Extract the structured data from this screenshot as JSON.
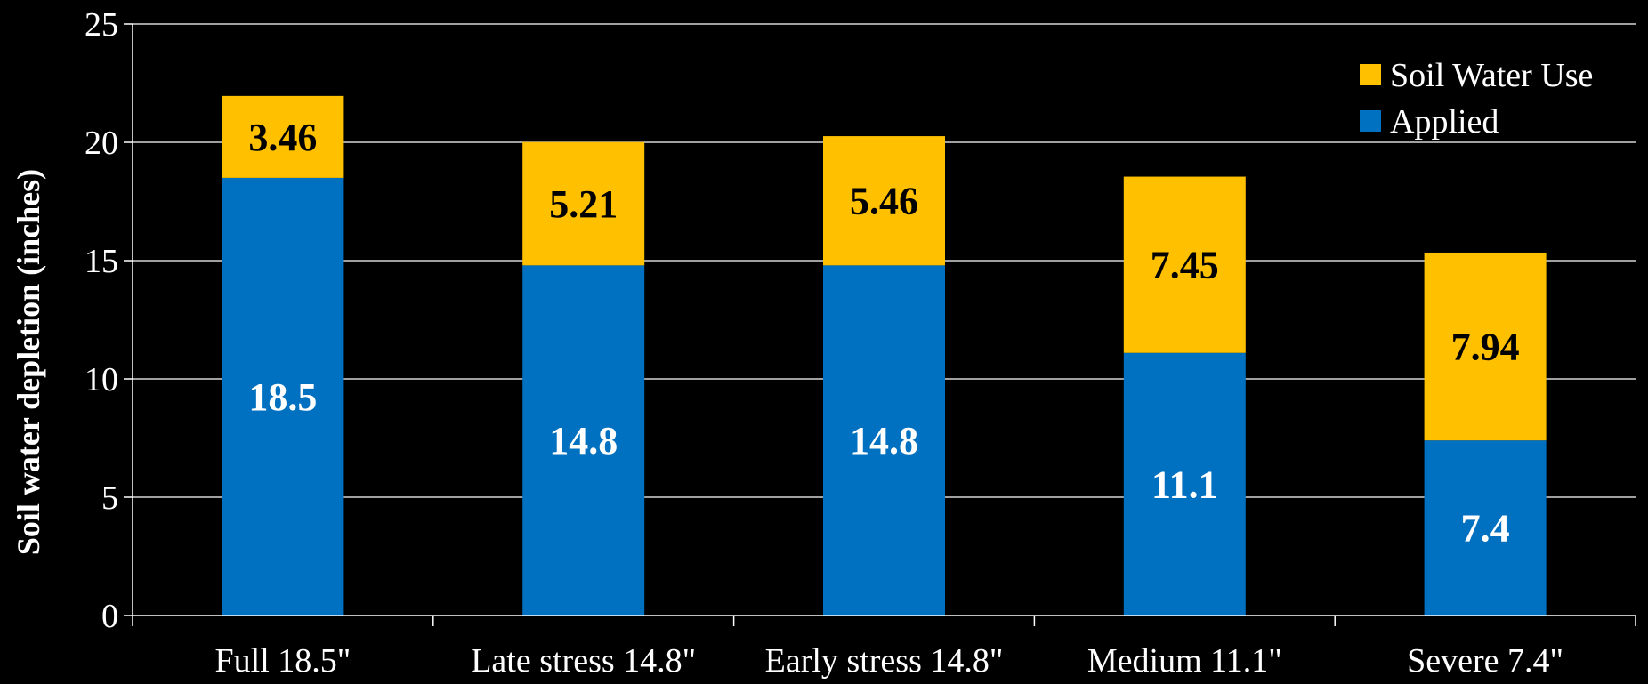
{
  "chart_data": {
    "type": "bar",
    "stacked": true,
    "title": "",
    "xlabel": "",
    "ylabel": "Soil water depletion (inches)",
    "ylim": [
      0,
      25
    ],
    "yticks": [
      "0",
      "5",
      "10",
      "15",
      "20",
      "25"
    ],
    "grid": true,
    "legend_position": "top-right",
    "categories": [
      "Full 18.5\"",
      "Late stress 14.8\"",
      "Early stress 14.8\"",
      "Medium 11.1\"",
      "Severe 7.4\""
    ],
    "series": [
      {
        "name": "Applied",
        "color": "#0070c0",
        "label_color": "#ffffff",
        "values": [
          18.5,
          14.8,
          14.8,
          11.1,
          7.4
        ],
        "labels": [
          "18.5",
          "14.8",
          "14.8",
          "11.1",
          "7.4"
        ]
      },
      {
        "name": "Soil Water Use",
        "color": "#ffc000",
        "label_color": "#000000",
        "values": [
          3.46,
          5.21,
          5.46,
          7.45,
          7.94
        ],
        "labels": [
          "3.46",
          "5.21",
          "5.46",
          "7.45",
          "7.94"
        ]
      }
    ],
    "legend_order": [
      "Soil Water Use",
      "Applied"
    ],
    "background": "#000000",
    "axis_color": "#ffffff"
  }
}
